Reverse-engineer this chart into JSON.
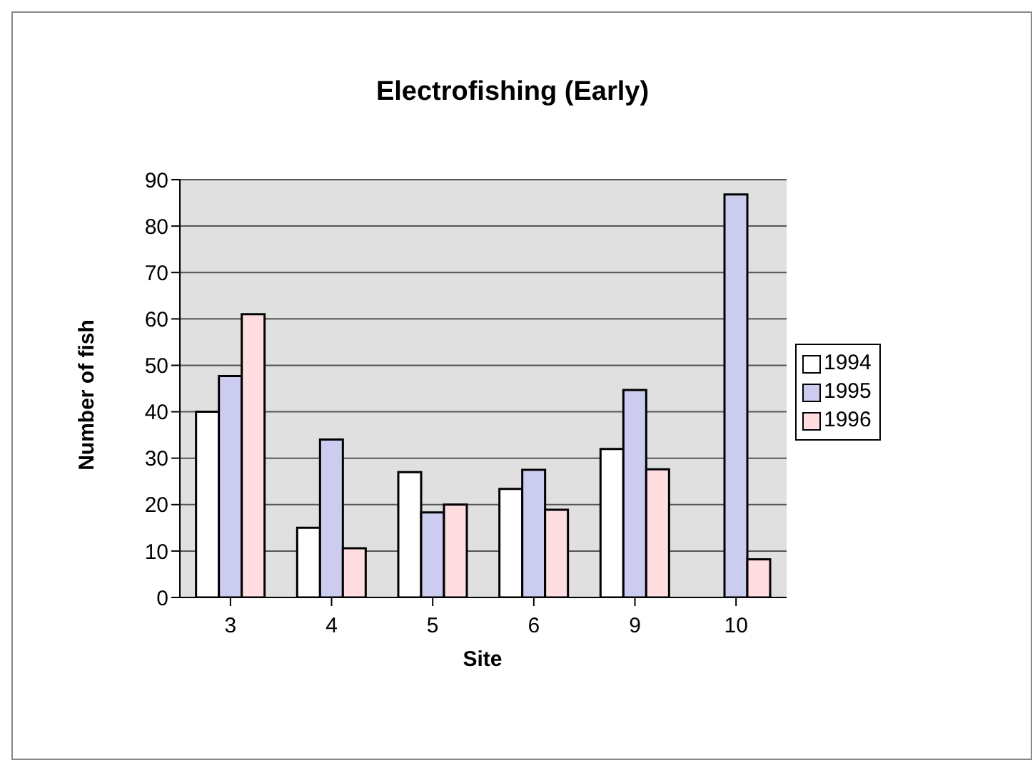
{
  "chart_data": {
    "type": "bar",
    "title": "Electrofishing (Early)",
    "xlabel": "Site",
    "ylabel": "Number of fish",
    "categories": [
      "3",
      "4",
      "5",
      "6",
      "9",
      "10"
    ],
    "series": [
      {
        "name": "1994",
        "color": "#ffffff",
        "values": [
          40,
          15,
          27,
          23.4,
          32,
          null
        ]
      },
      {
        "name": "1995",
        "color": "#ccccf0",
        "values": [
          47.7,
          34,
          18.3,
          27.5,
          44.7,
          86.8
        ]
      },
      {
        "name": "1996",
        "color": "#ffdde0",
        "values": [
          61,
          10.6,
          20,
          18.9,
          27.6,
          8.2
        ]
      }
    ],
    "ylim": [
      0,
      90
    ],
    "yticks": [
      0,
      10,
      20,
      30,
      40,
      50,
      60,
      70,
      80,
      90
    ],
    "grid": "y",
    "legend": "right"
  }
}
